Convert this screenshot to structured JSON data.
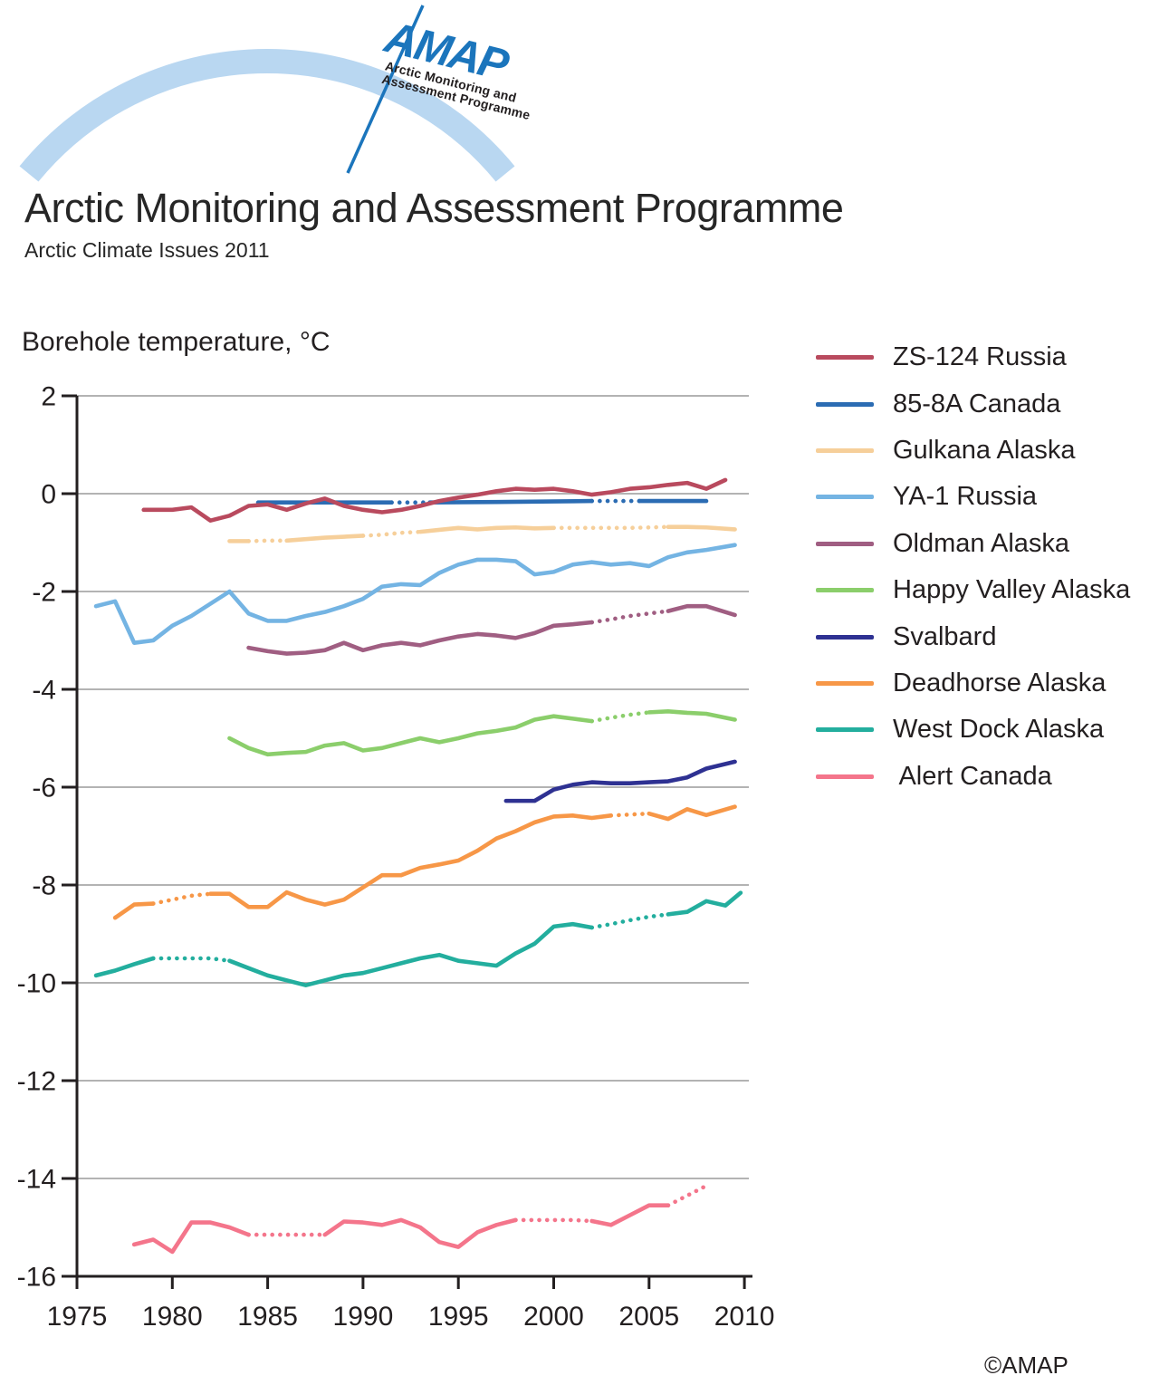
{
  "header": {
    "logo": {
      "acronym": "AMAP",
      "line1": "Arctic Monitoring and",
      "line2": "Assessment Programme",
      "logo_blue": "#1b75bc",
      "arc_color": "#b9d7f1"
    },
    "title": "Arctic Monitoring and Assessment Programme",
    "subtitle": "Arctic Climate Issues 2011"
  },
  "footer": {
    "credit": "©AMAP"
  },
  "chart_data": {
    "type": "line",
    "title": "Borehole temperature, °C",
    "xlabel": "",
    "ylabel": "Borehole temperature, °C",
    "xlim": [
      1975,
      2010
    ],
    "ylim": [
      -16,
      2
    ],
    "x_ticks": [
      1975,
      1980,
      1985,
      1990,
      1995,
      2000,
      2005,
      2010
    ],
    "y_ticks": [
      2,
      0,
      -2,
      -4,
      -6,
      -8,
      -10,
      -12,
      -14,
      -16
    ],
    "grid": true,
    "grid_color": "#b3b3b3",
    "axis_color": "#231f20",
    "legend_position": "right",
    "dotted_meaning": "dotted line segments as shown in source figure",
    "series": [
      {
        "name": "ZS-124 Russia",
        "color": "#b94a5e",
        "points": [
          [
            1978.5,
            -0.33
          ],
          [
            1980,
            -0.33
          ],
          [
            1981,
            -0.28
          ],
          [
            1982,
            -0.55
          ],
          [
            1983,
            -0.45
          ],
          [
            1984,
            -0.25
          ],
          [
            1985,
            -0.22
          ],
          [
            1986,
            -0.33
          ],
          [
            1987,
            -0.2
          ],
          [
            1988,
            -0.1
          ],
          [
            1989,
            -0.25
          ],
          [
            1990,
            -0.33
          ],
          [
            1991,
            -0.38
          ],
          [
            1992,
            -0.33
          ],
          [
            1993,
            -0.25
          ],
          [
            1994,
            -0.15
          ],
          [
            1995,
            -0.08
          ],
          [
            1996,
            -0.02
          ],
          [
            1997,
            0.05
          ],
          [
            1998,
            0.1
          ],
          [
            1999,
            0.08
          ],
          [
            2000,
            0.1
          ],
          [
            2001,
            0.05
          ],
          [
            2002,
            -0.02
          ],
          [
            2003,
            0.03
          ],
          [
            2004,
            0.1
          ],
          [
            2005,
            0.13
          ],
          [
            2006,
            0.18
          ],
          [
            2007,
            0.22
          ],
          [
            2008,
            0.1
          ],
          [
            2009,
            0.28
          ]
        ],
        "dotted_ranges": []
      },
      {
        "name": "85-8A Canada",
        "color": "#2b6cb3",
        "points": [
          [
            1984.5,
            -0.18
          ],
          [
            1991.5,
            -0.18
          ],
          [
            1993.5,
            -0.18
          ],
          [
            1997,
            -0.17
          ],
          [
            2002,
            -0.15
          ],
          [
            2004.5,
            -0.15
          ],
          [
            2008,
            -0.15
          ]
        ],
        "dotted_ranges": [
          [
            1991.5,
            1993.5
          ],
          [
            2002,
            2004.5
          ]
        ]
      },
      {
        "name": "Gulkana Alaska",
        "color": "#f6cf9a",
        "points": [
          [
            1983,
            -0.97
          ],
          [
            1984,
            -0.97
          ],
          [
            1985,
            -0.96
          ],
          [
            1986,
            -0.96
          ],
          [
            1987,
            -0.93
          ],
          [
            1988,
            -0.9
          ],
          [
            1989,
            -0.88
          ],
          [
            1990,
            -0.86
          ],
          [
            1991,
            -0.84
          ],
          [
            1992,
            -0.8
          ],
          [
            1993,
            -0.78
          ],
          [
            1994,
            -0.74
          ],
          [
            1995,
            -0.7
          ],
          [
            1996,
            -0.73
          ],
          [
            1997,
            -0.7
          ],
          [
            1998,
            -0.69
          ],
          [
            1999,
            -0.71
          ],
          [
            2000,
            -0.7
          ],
          [
            2001,
            -0.7
          ],
          [
            2002,
            -0.7
          ],
          [
            2003,
            -0.7
          ],
          [
            2004,
            -0.7
          ],
          [
            2005,
            -0.69
          ],
          [
            2006,
            -0.68
          ],
          [
            2007,
            -0.68
          ],
          [
            2008,
            -0.69
          ],
          [
            2009.5,
            -0.73
          ]
        ],
        "dotted_ranges": [
          [
            1984,
            1986
          ],
          [
            1990,
            1993
          ],
          [
            2000,
            2006
          ]
        ]
      },
      {
        "name": "YA-1 Russia",
        "color": "#74b4e3",
        "points": [
          [
            1976,
            -2.3
          ],
          [
            1977,
            -2.2
          ],
          [
            1978,
            -3.05
          ],
          [
            1979,
            -3.0
          ],
          [
            1980,
            -2.7
          ],
          [
            1981,
            -2.5
          ],
          [
            1982,
            -2.25
          ],
          [
            1983,
            -2.0
          ],
          [
            1984,
            -2.45
          ],
          [
            1985,
            -2.6
          ],
          [
            1986,
            -2.6
          ],
          [
            1987,
            -2.5
          ],
          [
            1988,
            -2.42
          ],
          [
            1989,
            -2.3
          ],
          [
            1990,
            -2.15
          ],
          [
            1991,
            -1.9
          ],
          [
            1992,
            -1.85
          ],
          [
            1993,
            -1.87
          ],
          [
            1994,
            -1.62
          ],
          [
            1995,
            -1.45
          ],
          [
            1996,
            -1.35
          ],
          [
            1997,
            -1.35
          ],
          [
            1998,
            -1.38
          ],
          [
            1999,
            -1.65
          ],
          [
            2000,
            -1.6
          ],
          [
            2001,
            -1.45
          ],
          [
            2002,
            -1.4
          ],
          [
            2003,
            -1.45
          ],
          [
            2004,
            -1.42
          ],
          [
            2005,
            -1.48
          ],
          [
            2006,
            -1.3
          ],
          [
            2007,
            -1.2
          ],
          [
            2008,
            -1.15
          ],
          [
            2009.5,
            -1.05
          ]
        ],
        "dotted_ranges": []
      },
      {
        "name": "Oldman Alaska",
        "color": "#a05e82",
        "points": [
          [
            1984,
            -3.15
          ],
          [
            1985,
            -3.22
          ],
          [
            1986,
            -3.27
          ],
          [
            1987,
            -3.25
          ],
          [
            1988,
            -3.2
          ],
          [
            1989,
            -3.05
          ],
          [
            1990,
            -3.2
          ],
          [
            1991,
            -3.1
          ],
          [
            1992,
            -3.05
          ],
          [
            1993,
            -3.1
          ],
          [
            1994,
            -3.0
          ],
          [
            1995,
            -2.92
          ],
          [
            1996,
            -2.87
          ],
          [
            1997,
            -2.9
          ],
          [
            1998,
            -2.95
          ],
          [
            1999,
            -2.85
          ],
          [
            2000,
            -2.7
          ],
          [
            2001,
            -2.67
          ],
          [
            2002,
            -2.63
          ],
          [
            2003,
            -2.57
          ],
          [
            2004,
            -2.5
          ],
          [
            2005,
            -2.45
          ],
          [
            2006,
            -2.4
          ],
          [
            2007,
            -2.3
          ],
          [
            2008,
            -2.3
          ],
          [
            2009.5,
            -2.48
          ]
        ],
        "dotted_ranges": [
          [
            2002,
            2006
          ]
        ]
      },
      {
        "name": "Happy Valley Alaska",
        "color": "#8bce6b",
        "points": [
          [
            1983,
            -5.0
          ],
          [
            1984,
            -5.2
          ],
          [
            1985,
            -5.33
          ],
          [
            1986,
            -5.3
          ],
          [
            1987,
            -5.28
          ],
          [
            1988,
            -5.15
          ],
          [
            1989,
            -5.1
          ],
          [
            1990,
            -5.25
          ],
          [
            1991,
            -5.2
          ],
          [
            1992,
            -5.1
          ],
          [
            1993,
            -5.0
          ],
          [
            1994,
            -5.08
          ],
          [
            1995,
            -5.0
          ],
          [
            1996,
            -4.9
          ],
          [
            1997,
            -4.85
          ],
          [
            1998,
            -4.78
          ],
          [
            1999,
            -4.62
          ],
          [
            2000,
            -4.55
          ],
          [
            2001,
            -4.6
          ],
          [
            2002,
            -4.65
          ],
          [
            2003,
            -4.58
          ],
          [
            2004,
            -4.52
          ],
          [
            2005,
            -4.47
          ],
          [
            2006,
            -4.45
          ],
          [
            2007,
            -4.48
          ],
          [
            2008,
            -4.5
          ],
          [
            2009.5,
            -4.62
          ]
        ],
        "dotted_ranges": [
          [
            2002,
            2005
          ]
        ]
      },
      {
        "name": "Svalbard",
        "color": "#2e3192",
        "points": [
          [
            1997.5,
            -6.28
          ],
          [
            1999,
            -6.28
          ],
          [
            2000,
            -6.05
          ],
          [
            2001,
            -5.95
          ],
          [
            2002,
            -5.9
          ],
          [
            2003,
            -5.92
          ],
          [
            2004,
            -5.92
          ],
          [
            2005,
            -5.9
          ],
          [
            2006,
            -5.88
          ],
          [
            2007,
            -5.8
          ],
          [
            2008,
            -5.62
          ],
          [
            2009.5,
            -5.48
          ]
        ],
        "dotted_ranges": []
      },
      {
        "name": "Deadhorse Alaska",
        "color": "#f79747",
        "points": [
          [
            1977,
            -8.67
          ],
          [
            1978,
            -8.4
          ],
          [
            1979,
            -8.38
          ],
          [
            1980,
            -8.3
          ],
          [
            1981,
            -8.22
          ],
          [
            1982,
            -8.18
          ],
          [
            1983,
            -8.18
          ],
          [
            1984,
            -8.45
          ],
          [
            1985,
            -8.45
          ],
          [
            1986,
            -8.15
          ],
          [
            1987,
            -8.3
          ],
          [
            1988,
            -8.4
          ],
          [
            1989,
            -8.3
          ],
          [
            1990,
            -8.05
          ],
          [
            1991,
            -7.8
          ],
          [
            1992,
            -7.8
          ],
          [
            1993,
            -7.65
          ],
          [
            1994,
            -7.58
          ],
          [
            1995,
            -7.5
          ],
          [
            1996,
            -7.3
          ],
          [
            1997,
            -7.05
          ],
          [
            1998,
            -6.9
          ],
          [
            1999,
            -6.72
          ],
          [
            2000,
            -6.6
          ],
          [
            2001,
            -6.58
          ],
          [
            2002,
            -6.63
          ],
          [
            2003,
            -6.58
          ],
          [
            2004,
            -6.56
          ],
          [
            2005,
            -6.54
          ],
          [
            2006,
            -6.65
          ],
          [
            2007,
            -6.45
          ],
          [
            2008,
            -6.57
          ],
          [
            2009.5,
            -6.4
          ]
        ],
        "dotted_ranges": [
          [
            1979,
            1982
          ],
          [
            2003,
            2005
          ]
        ]
      },
      {
        "name": "West Dock Alaska",
        "color": "#23ae9e",
        "points": [
          [
            1976,
            -9.85
          ],
          [
            1977,
            -9.75
          ],
          [
            1978,
            -9.62
          ],
          [
            1979,
            -9.5
          ],
          [
            1980,
            -9.5
          ],
          [
            1981,
            -9.5
          ],
          [
            1982,
            -9.5
          ],
          [
            1983,
            -9.55
          ],
          [
            1984,
            -9.7
          ],
          [
            1985,
            -9.85
          ],
          [
            1986,
            -9.95
          ],
          [
            1987,
            -10.05
          ],
          [
            1988,
            -9.95
          ],
          [
            1989,
            -9.85
          ],
          [
            1990,
            -9.8
          ],
          [
            1991,
            -9.7
          ],
          [
            1992,
            -9.6
          ],
          [
            1993,
            -9.5
          ],
          [
            1994,
            -9.43
          ],
          [
            1995,
            -9.55
          ],
          [
            1996,
            -9.6
          ],
          [
            1997,
            -9.65
          ],
          [
            1998,
            -9.4
          ],
          [
            1999,
            -9.2
          ],
          [
            2000,
            -8.85
          ],
          [
            2001,
            -8.8
          ],
          [
            2002,
            -8.87
          ],
          [
            2003,
            -8.8
          ],
          [
            2004,
            -8.72
          ],
          [
            2005,
            -8.65
          ],
          [
            2006,
            -8.6
          ],
          [
            2007,
            -8.55
          ],
          [
            2008,
            -8.33
          ],
          [
            2009,
            -8.42
          ],
          [
            2009.8,
            -8.16
          ]
        ],
        "dotted_ranges": [
          [
            1979,
            1983
          ],
          [
            2002,
            2006
          ]
        ]
      },
      {
        "name": " Alert Canada",
        "color": "#f4758b",
        "points": [
          [
            1978,
            -15.35
          ],
          [
            1979,
            -15.25
          ],
          [
            1980,
            -15.5
          ],
          [
            1981,
            -14.9
          ],
          [
            1982,
            -14.9
          ],
          [
            1983,
            -15.0
          ],
          [
            1984,
            -15.15
          ],
          [
            1985,
            -15.15
          ],
          [
            1986,
            -15.15
          ],
          [
            1987,
            -15.15
          ],
          [
            1988,
            -15.15
          ],
          [
            1989,
            -14.88
          ],
          [
            1990,
            -14.9
          ],
          [
            1991,
            -14.95
          ],
          [
            1992,
            -14.85
          ],
          [
            1993,
            -15.0
          ],
          [
            1994,
            -15.3
          ],
          [
            1995,
            -15.4
          ],
          [
            1996,
            -15.1
          ],
          [
            1997,
            -14.95
          ],
          [
            1998,
            -14.85
          ],
          [
            1999,
            -14.85
          ],
          [
            2000,
            -14.85
          ],
          [
            2001,
            -14.85
          ],
          [
            2002,
            -14.87
          ],
          [
            2003,
            -14.95
          ],
          [
            2004,
            -14.75
          ],
          [
            2005,
            -14.55
          ],
          [
            2006,
            -14.55
          ],
          [
            2007,
            -14.35
          ],
          [
            2008,
            -14.15
          ]
        ],
        "dotted_ranges": [
          [
            1984,
            1988
          ],
          [
            1998,
            2002
          ],
          [
            2006,
            2008
          ]
        ]
      }
    ]
  }
}
